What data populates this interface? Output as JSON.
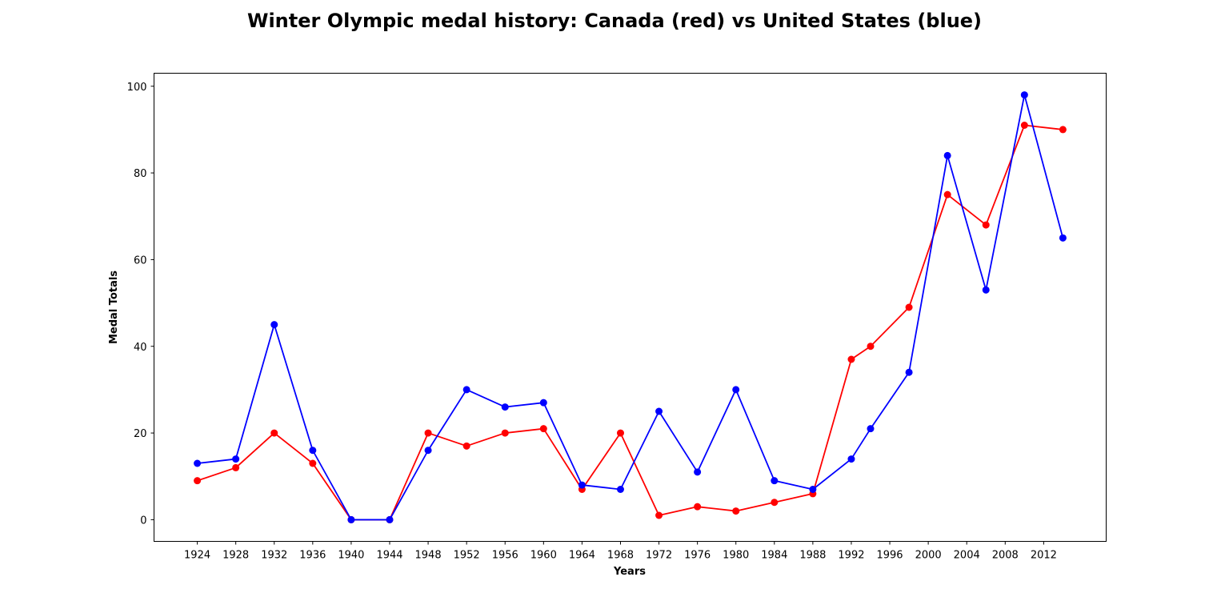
{
  "chart_data": {
    "type": "line",
    "title": "Winter Olympic medal history: Canada (red) vs United States (blue)",
    "xlabel": "Years",
    "ylabel": "Medal Totals",
    "xlim": [
      1919.5,
      2018.5
    ],
    "ylim": [
      -5,
      103
    ],
    "x_ticks": [
      1924,
      1928,
      1932,
      1936,
      1940,
      1944,
      1948,
      1952,
      1956,
      1960,
      1964,
      1968,
      1972,
      1976,
      1980,
      1984,
      1988,
      1992,
      1996,
      2000,
      2004,
      2008,
      2012
    ],
    "y_ticks": [
      0,
      20,
      40,
      60,
      80,
      100
    ],
    "grid": false,
    "legend": "none",
    "series": [
      {
        "color": "#ff0000",
        "x": [
          1924,
          1928,
          1932,
          1936,
          1940,
          1944,
          1948,
          1952,
          1956,
          1960,
          1964,
          1968,
          1972,
          1976,
          1980,
          1984,
          1988,
          1992,
          1994,
          1998,
          2002,
          2006,
          2010,
          2014
        ],
        "y": [
          9,
          12,
          20,
          13,
          0,
          0,
          20,
          17,
          20,
          21,
          7,
          20,
          1,
          3,
          2,
          4,
          6,
          37,
          40,
          49,
          75,
          68,
          91,
          90
        ]
      },
      {
        "color": "#0000ff",
        "x": [
          1924,
          1928,
          1932,
          1936,
          1940,
          1944,
          1948,
          1952,
          1956,
          1960,
          1964,
          1968,
          1972,
          1976,
          1980,
          1984,
          1988,
          1992,
          1994,
          1998,
          2002,
          2006,
          2010,
          2014
        ],
        "y": [
          13,
          14,
          45,
          16,
          0,
          0,
          16,
          30,
          26,
          27,
          8,
          7,
          25,
          11,
          30,
          9,
          7,
          14,
          21,
          34,
          84,
          53,
          98,
          65
        ]
      }
    ]
  }
}
